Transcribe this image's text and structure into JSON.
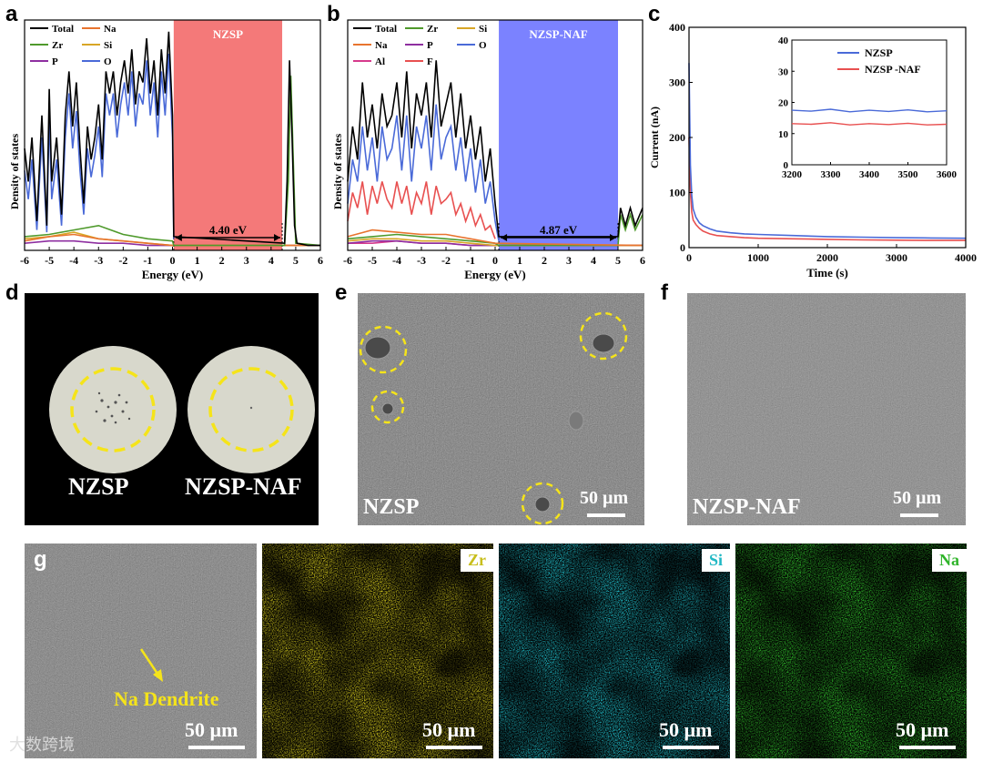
{
  "panels": {
    "a": "a",
    "b": "b",
    "c": "c",
    "d": "d",
    "e": "e",
    "f": "f",
    "g": "g"
  },
  "colors": {
    "total": "#000000",
    "na": "#e8742e",
    "zr": "#4f9a2c",
    "si": "#d8a626",
    "p": "#8e2fa0",
    "o": "#4a6ad8",
    "al": "#d63a8c",
    "f": "#e85050",
    "gap_a": "#f47979",
    "gap_b": "#7b82ff"
  },
  "chart_data": [
    {
      "id": "a",
      "type": "line",
      "xlabel": "Energy (eV)",
      "ylabel": "Density of states",
      "xlim": [
        -6,
        6
      ],
      "xticks": [
        "-6",
        "-5",
        "-4",
        "-3",
        "-2",
        "-1",
        "0",
        "1",
        "2",
        "3",
        "4",
        "5",
        "6"
      ],
      "legend": [
        "Total",
        "Na",
        "Zr",
        "Si",
        "P",
        "O"
      ],
      "gap_label": "NZSP",
      "gap_value": "4.40 eV",
      "gap_range": [
        0.05,
        4.45
      ],
      "series": [
        {
          "name": "Total",
          "color_key": "total",
          "x": [
            -6,
            -5.85,
            -5.7,
            -5.5,
            -5.3,
            -5.1,
            -5.0,
            -4.9,
            -4.7,
            -4.5,
            -4.35,
            -4.2,
            -4.05,
            -3.9,
            -3.75,
            -3.6,
            -3.45,
            -3.3,
            -3.15,
            -3.0,
            -2.85,
            -2.7,
            -2.55,
            -2.4,
            -2.25,
            -2.1,
            -1.95,
            -1.8,
            -1.65,
            -1.5,
            -1.35,
            -1.2,
            -1.05,
            -0.9,
            -0.75,
            -0.6,
            -0.45,
            -0.3,
            -0.15,
            0.0,
            0.05,
            4.55,
            4.65,
            4.75,
            4.85,
            4.95,
            5.05,
            5.5,
            6
          ],
          "y": [
            0.45,
            0.3,
            0.5,
            0.12,
            0.6,
            0.1,
            0.72,
            0.3,
            0.5,
            0.15,
            0.6,
            0.8,
            0.55,
            0.75,
            0.45,
            0.2,
            0.55,
            0.4,
            0.5,
            0.65,
            0.4,
            0.8,
            0.7,
            0.8,
            0.6,
            0.75,
            0.85,
            0.7,
            0.9,
            0.65,
            0.8,
            0.75,
            0.95,
            0.7,
            0.85,
            0.6,
            0.9,
            0.7,
            0.98,
            0.6,
            0.05,
            0.02,
            0.3,
            0.85,
            0.5,
            0.1,
            0.02,
            0.01,
            0.01
          ]
        },
        {
          "name": "O",
          "color_key": "o",
          "x": [
            -6,
            -5.85,
            -5.7,
            -5.5,
            -5.3,
            -5.1,
            -5.0,
            -4.9,
            -4.7,
            -4.5,
            -4.35,
            -4.2,
            -4.05,
            -3.9,
            -3.75,
            -3.6,
            -3.45,
            -3.3,
            -3.15,
            -3.0,
            -2.85,
            -2.7,
            -2.55,
            -2.4,
            -2.25,
            -2.1,
            -1.95,
            -1.8,
            -1.65,
            -1.5,
            -1.35,
            -1.2,
            -1.05,
            -0.9,
            -0.75,
            -0.6,
            -0.45,
            -0.3,
            -0.15,
            0.0,
            0.05
          ],
          "y": [
            0.35,
            0.22,
            0.4,
            0.08,
            0.5,
            0.07,
            0.6,
            0.22,
            0.4,
            0.1,
            0.5,
            0.7,
            0.45,
            0.62,
            0.35,
            0.15,
            0.45,
            0.32,
            0.42,
            0.55,
            0.32,
            0.7,
            0.6,
            0.7,
            0.5,
            0.65,
            0.75,
            0.6,
            0.8,
            0.55,
            0.7,
            0.65,
            0.85,
            0.6,
            0.75,
            0.5,
            0.8,
            0.6,
            0.88,
            0.5,
            0.04
          ]
        },
        {
          "name": "Zr",
          "color_key": "zr",
          "x": [
            -6,
            -5,
            -4,
            -3,
            -2,
            -1,
            0,
            0.05,
            4.55,
            4.7,
            4.8,
            4.9,
            5.0,
            6
          ],
          "y": [
            0.05,
            0.06,
            0.08,
            0.1,
            0.06,
            0.04,
            0.03,
            0.01,
            0.01,
            0.3,
            0.78,
            0.4,
            0.02,
            0.01
          ]
        },
        {
          "name": "Na",
          "color_key": "na",
          "x": [
            -6,
            -5,
            -4,
            -3,
            -2,
            -1,
            0,
            6
          ],
          "y": [
            0.03,
            0.05,
            0.06,
            0.04,
            0.03,
            0.02,
            0.01,
            0.01
          ]
        },
        {
          "name": "Si",
          "color_key": "si",
          "x": [
            -6,
            -5,
            -4,
            -3,
            -2,
            -1,
            0,
            6
          ],
          "y": [
            0.04,
            0.05,
            0.07,
            0.04,
            0.03,
            0.02,
            0.01,
            0.01
          ]
        },
        {
          "name": "P",
          "color_key": "p",
          "x": [
            -6,
            -5,
            -4,
            -3,
            -2,
            -1,
            0,
            6
          ],
          "y": [
            0.02,
            0.03,
            0.03,
            0.02,
            0.02,
            0.01,
            0.01,
            0.01
          ]
        }
      ]
    },
    {
      "id": "b",
      "type": "line",
      "xlabel": "Energy (eV)",
      "ylabel": "Density of states",
      "xlim": [
        -6,
        6
      ],
      "xticks": [
        "-6",
        "-5",
        "-4",
        "-3",
        "-2",
        "-1",
        "0",
        "1",
        "2",
        "3",
        "4",
        "5",
        "6"
      ],
      "legend": [
        "Total",
        "Zr",
        "Si",
        "Na",
        "P",
        "O",
        "Al",
        "F"
      ],
      "gap_label": "NZSP-NAF",
      "gap_value": "4.87 eV",
      "gap_range": [
        0.15,
        5.0
      ],
      "series": [
        {
          "name": "Total",
          "color_key": "total",
          "x": [
            -6,
            -5.8,
            -5.6,
            -5.4,
            -5.2,
            -5.0,
            -4.8,
            -4.6,
            -4.4,
            -4.2,
            -4.0,
            -3.8,
            -3.6,
            -3.4,
            -3.2,
            -3.0,
            -2.8,
            -2.6,
            -2.4,
            -2.2,
            -2.0,
            -1.8,
            -1.6,
            -1.4,
            -1.2,
            -1.0,
            -0.8,
            -0.6,
            -0.4,
            -0.2,
            0.0,
            0.15,
            5.0,
            5.1,
            5.3,
            5.5,
            5.7,
            6
          ],
          "y": [
            0.3,
            0.55,
            0.4,
            0.75,
            0.5,
            0.65,
            0.45,
            0.7,
            0.55,
            0.6,
            0.75,
            0.5,
            0.8,
            0.45,
            0.7,
            0.6,
            0.75,
            0.5,
            0.85,
            0.55,
            0.65,
            0.75,
            0.5,
            0.7,
            0.45,
            0.6,
            0.4,
            0.55,
            0.3,
            0.45,
            0.2,
            0.05,
            0.05,
            0.18,
            0.1,
            0.18,
            0.1,
            0.18
          ]
        },
        {
          "name": "O",
          "color_key": "o",
          "x": [
            -6,
            -5.8,
            -5.6,
            -5.4,
            -5.2,
            -5.0,
            -4.8,
            -4.6,
            -4.4,
            -4.2,
            -4.0,
            -3.8,
            -3.6,
            -3.4,
            -3.2,
            -3.0,
            -2.8,
            -2.6,
            -2.4,
            -2.2,
            -2.0,
            -1.8,
            -1.6,
            -1.4,
            -1.2,
            -1.0,
            -0.8,
            -0.6,
            -0.4,
            -0.2,
            0.0,
            0.15
          ],
          "y": [
            0.2,
            0.4,
            0.3,
            0.55,
            0.35,
            0.5,
            0.3,
            0.55,
            0.4,
            0.45,
            0.6,
            0.35,
            0.6,
            0.3,
            0.55,
            0.45,
            0.6,
            0.35,
            0.65,
            0.4,
            0.5,
            0.55,
            0.35,
            0.5,
            0.3,
            0.45,
            0.25,
            0.4,
            0.2,
            0.3,
            0.12,
            0.03
          ]
        },
        {
          "name": "F",
          "color_key": "f",
          "x": [
            -6,
            -5.8,
            -5.6,
            -5.4,
            -5.2,
            -5.0,
            -4.8,
            -4.6,
            -4.4,
            -4.2,
            -4.0,
            -3.8,
            -3.6,
            -3.4,
            -3.2,
            -3.0,
            -2.8,
            -2.6,
            -2.4,
            -2.2,
            -2.0,
            -1.8,
            -1.6,
            -1.4,
            -1.2,
            -1.0,
            -0.8,
            -0.6,
            -0.4,
            -0.2,
            0.0
          ],
          "y": [
            0.12,
            0.25,
            0.18,
            0.3,
            0.15,
            0.28,
            0.2,
            0.3,
            0.22,
            0.18,
            0.3,
            0.2,
            0.28,
            0.15,
            0.25,
            0.2,
            0.3,
            0.15,
            0.28,
            0.2,
            0.22,
            0.25,
            0.15,
            0.2,
            0.12,
            0.18,
            0.1,
            0.15,
            0.08,
            0.1,
            0.04
          ]
        },
        {
          "name": "Na",
          "color_key": "na",
          "x": [
            -6,
            -5,
            -4,
            -3,
            -2,
            -1,
            0,
            6
          ],
          "y": [
            0.05,
            0.08,
            0.07,
            0.06,
            0.06,
            0.04,
            0.02,
            0.01
          ]
        },
        {
          "name": "Zr",
          "color_key": "zr",
          "x": [
            -6,
            -5,
            -4,
            -3,
            -2,
            -1,
            0,
            0.15,
            5.0,
            5.1,
            5.3,
            5.5,
            5.7,
            6
          ],
          "y": [
            0.04,
            0.05,
            0.06,
            0.05,
            0.04,
            0.03,
            0.02,
            0.01,
            0.01,
            0.15,
            0.08,
            0.15,
            0.08,
            0.15
          ]
        },
        {
          "name": "Si",
          "color_key": "si",
          "x": [
            -6,
            -5,
            -4,
            -3,
            -2,
            -1,
            0,
            6
          ],
          "y": [
            0.03,
            0.04,
            0.04,
            0.03,
            0.03,
            0.02,
            0.01,
            0.01
          ]
        },
        {
          "name": "P",
          "color_key": "p",
          "x": [
            -6,
            -5,
            -4,
            -3,
            -2,
            -1,
            0,
            6
          ],
          "y": [
            0.02,
            0.03,
            0.03,
            0.02,
            0.02,
            0.01,
            0.01,
            0.01
          ]
        },
        {
          "name": "Al",
          "color_key": "al",
          "x": [
            -6,
            -5,
            -4,
            -3,
            -2,
            -1,
            0,
            6
          ],
          "y": [
            0.02,
            0.02,
            0.03,
            0.02,
            0.02,
            0.01,
            0.01,
            0.01
          ]
        }
      ]
    },
    {
      "id": "c",
      "type": "line",
      "xlabel": "Time (s)",
      "ylabel": "Current (nA)",
      "xlim": [
        0,
        4000
      ],
      "ylim": [
        0,
        400
      ],
      "xticks": [
        "0",
        "1000",
        "2000",
        "3000",
        "4000"
      ],
      "yticks": [
        "0",
        "100",
        "200",
        "300",
        "400"
      ],
      "series": [
        {
          "name": "NZSP",
          "color_key": "o",
          "x": [
            0,
            20,
            40,
            60,
            100,
            150,
            200,
            300,
            400,
            600,
            800,
            1000,
            1500,
            2000,
            2500,
            3000,
            3500,
            4000
          ],
          "y": [
            335,
            150,
            95,
            70,
            55,
            45,
            40,
            34,
            30,
            27,
            25,
            24,
            22,
            20,
            19,
            18,
            17.5,
            17
          ]
        },
        {
          "name": "NZSP -NAF",
          "color_key": "f",
          "x": [
            0,
            20,
            40,
            60,
            100,
            150,
            200,
            300,
            400,
            600,
            800,
            1000,
            1500,
            2000,
            2500,
            3000,
            3500,
            4000
          ],
          "y": [
            200,
            100,
            65,
            50,
            42,
            35,
            30,
            25,
            22,
            20,
            18,
            17,
            16,
            15,
            14,
            13.5,
            13,
            13
          ]
        }
      ],
      "inset": {
        "xlim": [
          3200,
          3600
        ],
        "ylim": [
          0,
          40
        ],
        "xticks": [
          "3200",
          "3300",
          "3400",
          "3500",
          "3600"
        ],
        "yticks": [
          "0",
          "10",
          "20",
          "30",
          "40"
        ],
        "legend": [
          "NZSP",
          "NZSP -NAF"
        ],
        "series": [
          {
            "name": "NZSP",
            "color_key": "o",
            "x": [
              3200,
              3250,
              3300,
              3350,
              3400,
              3450,
              3500,
              3550,
              3600
            ],
            "y": [
              17.5,
              17.2,
              17.8,
              17.0,
              17.5,
              17.1,
              17.6,
              17.0,
              17.3
            ]
          },
          {
            "name": "NZSP -NAF",
            "color_key": "f",
            "x": [
              3200,
              3250,
              3300,
              3350,
              3400,
              3450,
              3500,
              3550,
              3600
            ],
            "y": [
              13.2,
              13.0,
              13.5,
              12.8,
              13.2,
              12.9,
              13.3,
              12.8,
              13.0
            ]
          }
        ]
      }
    }
  ],
  "photo_d": {
    "left": "NZSP",
    "right": "NZSP-NAF"
  },
  "sem_e": {
    "label": "NZSP",
    "scale": "50 µm"
  },
  "sem_f": {
    "label": "NZSP-NAF",
    "scale": "50 µm"
  },
  "sem_g": {
    "annotation": "Na Dendrite",
    "scale": "50 µm"
  },
  "eds": [
    {
      "element": "Zr",
      "scale": "50 µm"
    },
    {
      "element": "Si",
      "scale": "50 µm"
    },
    {
      "element": "Na",
      "scale": "50 µm"
    }
  ],
  "watermark": "大数跨境"
}
